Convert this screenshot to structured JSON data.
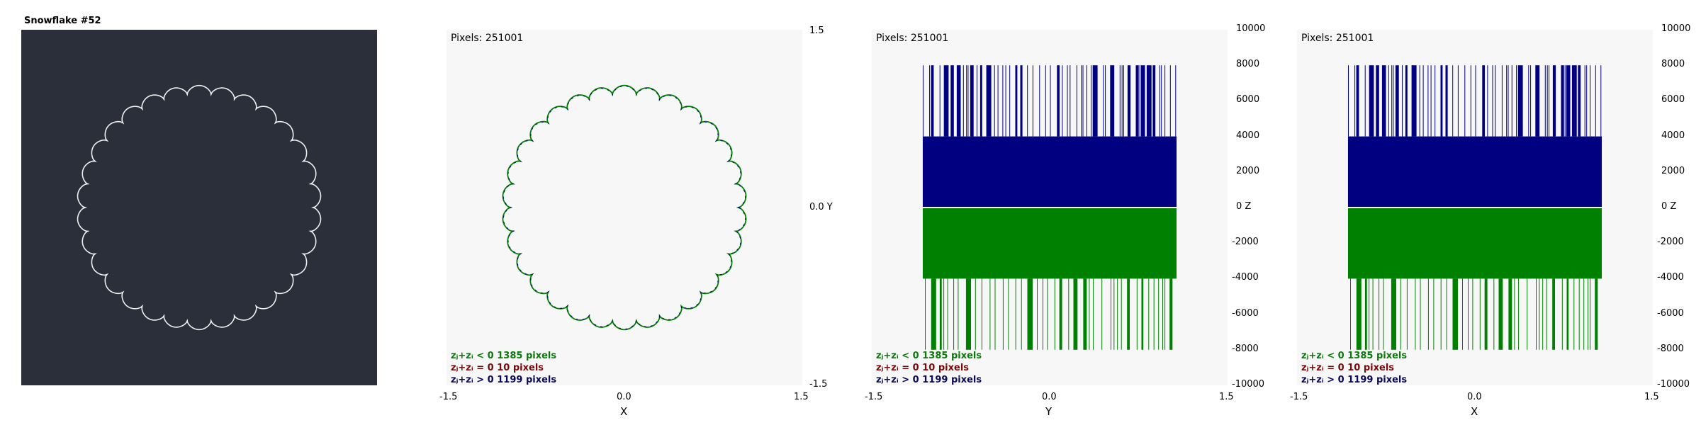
{
  "panel1": {
    "title": "Snowflake #52",
    "bg": "#2a2f3a"
  },
  "pixels_label": "Pixels: 251001",
  "legend": [
    {
      "text": "zⱼ+zᵢ < 0  1385 pixels",
      "color": "#0a7a0a"
    },
    {
      "text": "zⱼ+zᵢ = 0  10 pixels",
      "color": "#7a0a0a"
    },
    {
      "text": "zⱼ+zᵢ > 0  1199 pixels",
      "color": "#0a0a5a"
    }
  ],
  "colors": {
    "green": "#008000",
    "navy": "#000080",
    "plot_bg": "#f7f7f7"
  },
  "chart_data": [
    {
      "type": "scatter",
      "panel": "XY ring",
      "xlabel": "X",
      "ylabel": "Y",
      "xlim": [
        -1.5,
        1.5
      ],
      "ylim": [
        -1.5,
        1.5
      ],
      "xticks": [
        "-1.5",
        "0.0",
        "1.5"
      ],
      "yticks": [
        "1.5",
        "0.0 Y",
        "-1.5"
      ],
      "ring": {
        "radius": 1.03,
        "bumps": 30,
        "bump_depth": 0.07
      }
    },
    {
      "type": "bar",
      "panel": "YZ",
      "xlabel": "Y",
      "ylabel": "Z",
      "xlim": [
        -1.5,
        1.5
      ],
      "ylim": [
        -10000,
        10000
      ],
      "xticks": [
        "-1.5",
        "0.0",
        "1.5"
      ],
      "yticks": [
        "10000",
        "8000",
        "6000",
        "4000",
        "2000",
        "0   Z",
        "-2000",
        "-4000",
        "-6000",
        "-8000",
        "-10000"
      ],
      "band": {
        "x_range": [
          -1.07,
          1.07
        ],
        "pos_top": 4000,
        "neg_bottom": -4000,
        "spike_pos": 8000,
        "spike_neg": -8000
      }
    },
    {
      "type": "bar",
      "panel": "XZ",
      "xlabel": "X",
      "ylabel": "Z",
      "xlim": [
        -1.5,
        1.5
      ],
      "ylim": [
        -10000,
        10000
      ],
      "xticks": [
        "-1.5",
        "0.0",
        "1.5"
      ],
      "yticks": [
        "10000",
        "8000",
        "6000",
        "4000",
        "2000",
        "0   Z",
        "-2000",
        "-4000",
        "-6000",
        "-8000",
        "-10000"
      ],
      "band": {
        "x_range": [
          -1.07,
          1.07
        ],
        "pos_top": 4000,
        "neg_bottom": -4000,
        "spike_pos": 8000,
        "spike_neg": -8000
      }
    }
  ]
}
